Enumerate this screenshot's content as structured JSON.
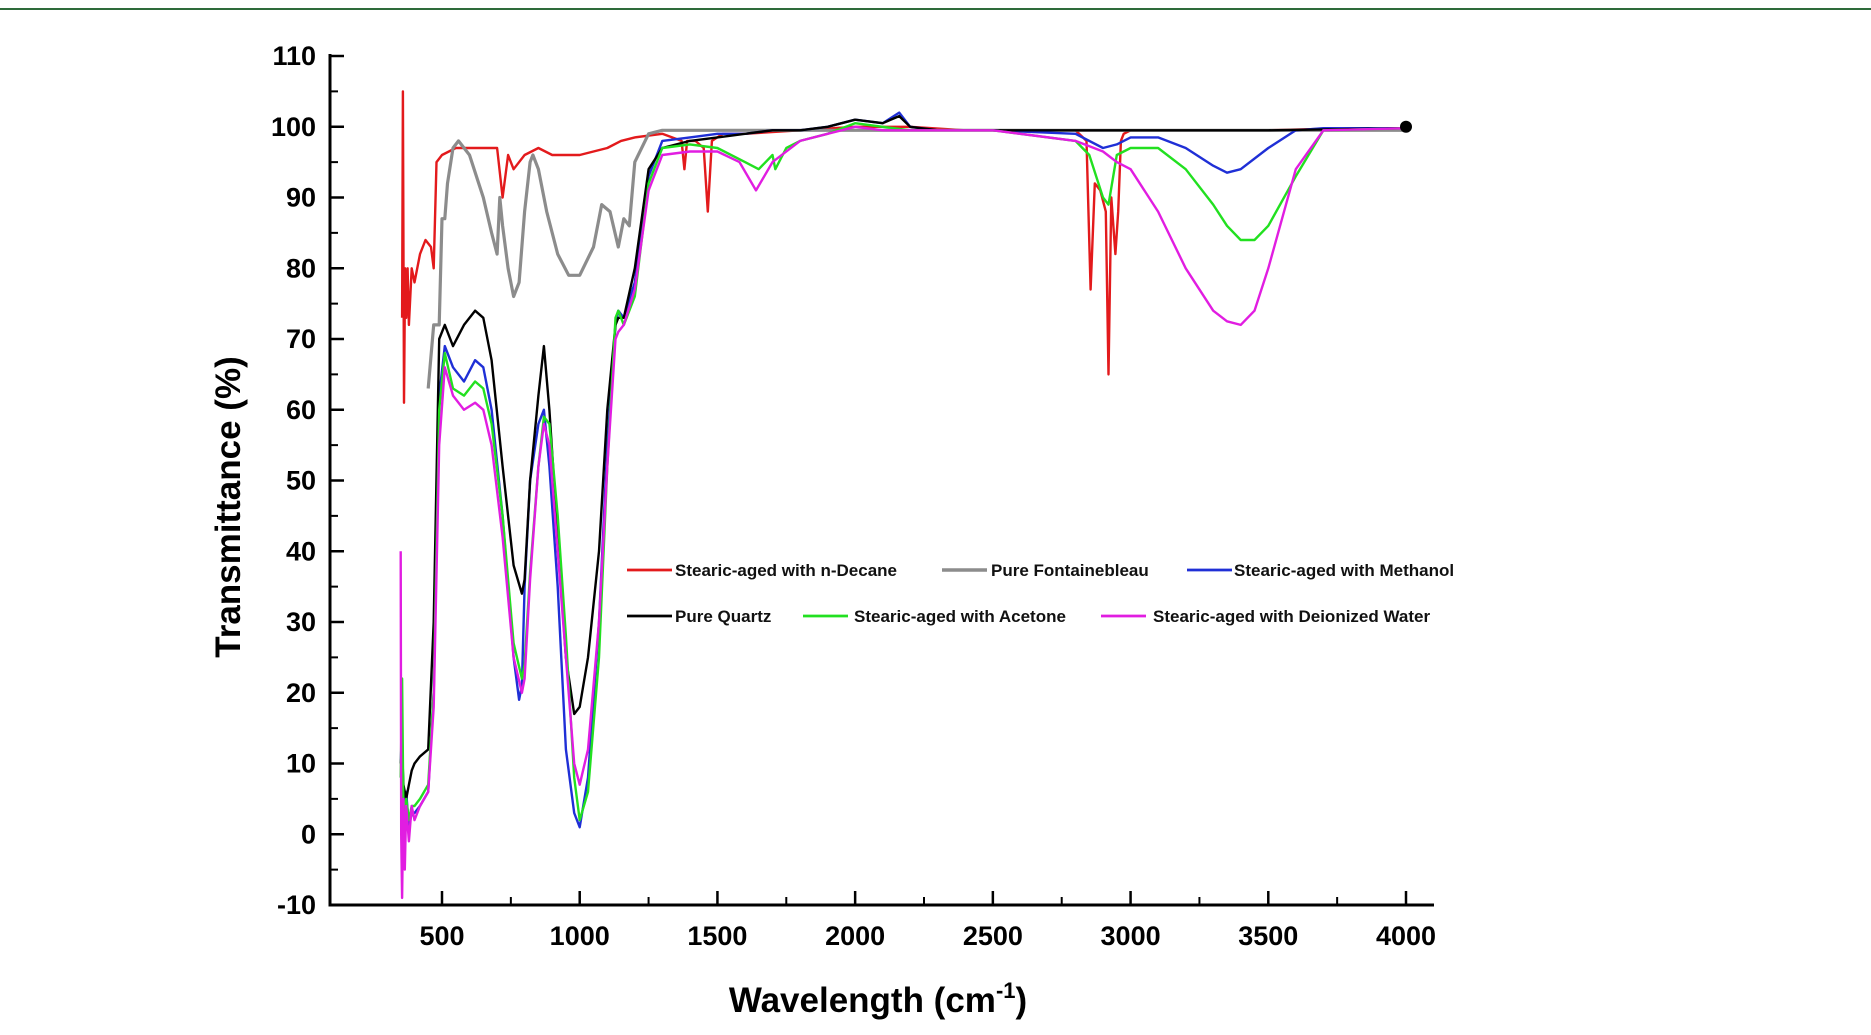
{
  "chart_data": {
    "type": "line",
    "title": "",
    "xlabel": "Wavelength (cm",
    "xlabel_sup": "-1",
    "xlabel_close": ")",
    "ylabel": "Transmittance (%)",
    "xlim": [
      300,
      4050
    ],
    "ylim": [
      -10,
      110
    ],
    "xticks": [
      500,
      1000,
      1500,
      2000,
      2500,
      3000,
      3500,
      4000
    ],
    "yticks": [
      -10,
      0,
      10,
      20,
      30,
      40,
      50,
      60,
      70,
      80,
      90,
      100,
      110
    ],
    "grid": false,
    "legend_position": "center-right",
    "series": [
      {
        "name": "Stearic-aged with n-Decane",
        "color": "#e31a1c",
        "x": [
          355,
          358,
          362,
          366,
          370,
          375,
          380,
          390,
          400,
          420,
          440,
          460,
          470,
          480,
          500,
          550,
          600,
          650,
          700,
          720,
          740,
          760,
          800,
          850,
          900,
          1000,
          1100,
          1150,
          1200,
          1300,
          1370,
          1380,
          1390,
          1420,
          1450,
          1465,
          1480,
          1520,
          1600,
          1800,
          2000,
          2200,
          2400,
          2600,
          2800,
          2840,
          2855,
          2870,
          2890,
          2910,
          2920,
          2930,
          2945,
          2955,
          2965,
          2975,
          3000,
          3200,
          3500,
          3800,
          4000
        ],
        "y": [
          73,
          105,
          61,
          80,
          73,
          80,
          72,
          80,
          78,
          82,
          84,
          83,
          80,
          95,
          96,
          97,
          97,
          97,
          97,
          90,
          96,
          94,
          96,
          97,
          96,
          96,
          97,
          98,
          98.5,
          99,
          98,
          94,
          98,
          98,
          97,
          88,
          98,
          99,
          99,
          99.5,
          100,
          100,
          99.5,
          99.5,
          99.5,
          98,
          77,
          92,
          91,
          88,
          65,
          90,
          82,
          88,
          98,
          99,
          99.5,
          99.5,
          99.5,
          99.8,
          99.8
        ]
      },
      {
        "name": "Pure Fontainebleau",
        "color": "#8c8c8c",
        "x": [
          450,
          470,
          490,
          500,
          510,
          520,
          540,
          560,
          600,
          650,
          680,
          700,
          710,
          720,
          740,
          760,
          780,
          800,
          820,
          830,
          850,
          880,
          920,
          960,
          1000,
          1050,
          1080,
          1110,
          1140,
          1160,
          1180,
          1200,
          1250,
          1300,
          1400,
          2000,
          2500,
          3000,
          3500,
          4000
        ],
        "y": [
          63,
          72,
          72,
          87,
          87,
          92,
          97,
          98,
          96,
          90,
          85,
          82,
          90,
          86,
          80,
          76,
          78,
          88,
          95,
          96,
          94,
          88,
          82,
          79,
          79,
          83,
          89,
          88,
          83,
          87,
          86,
          95,
          99,
          99.5,
          99.5,
          99.5,
          99.5,
          99.5,
          99.5,
          99.5
        ]
      },
      {
        "name": "Stearic-aged with Methanol",
        "color": "#1f2fd6",
        "x": [
          350,
          355,
          360,
          370,
          380,
          390,
          400,
          420,
          450,
          470,
          490,
          510,
          540,
          580,
          620,
          650,
          680,
          720,
          760,
          780,
          790,
          800,
          820,
          850,
          870,
          890,
          920,
          950,
          980,
          1000,
          1030,
          1070,
          1100,
          1130,
          1140,
          1160,
          1200,
          1250,
          1300,
          1400,
          1500,
          1600,
          1700,
          1800,
          1900,
          2000,
          2100,
          2160,
          2200,
          2300,
          2500,
          2800,
          2900,
          2950,
          3000,
          3100,
          3200,
          3300,
          3350,
          3400,
          3500,
          3600,
          3700,
          4000
        ],
        "y": [
          10,
          15,
          4,
          6,
          1,
          3,
          3,
          4,
          6,
          20,
          62,
          69,
          66,
          64,
          67,
          66,
          60,
          45,
          25,
          19,
          21,
          35,
          50,
          58,
          60,
          52,
          35,
          12,
          3,
          1,
          8,
          30,
          55,
          72,
          74,
          73,
          78,
          93,
          98,
          98.5,
          99,
          99,
          99.5,
          99.5,
          100,
          101,
          100.5,
          102,
          100,
          99.5,
          99.5,
          99,
          97,
          97.5,
          98.5,
          98.5,
          97,
          94.5,
          93.5,
          94,
          97,
          99.5,
          99.8,
          99.8
        ]
      },
      {
        "name": "Pure Quartz",
        "color": "#000000",
        "x": [
          350,
          355,
          360,
          370,
          380,
          390,
          400,
          420,
          450,
          470,
          490,
          510,
          540,
          580,
          620,
          650,
          680,
          720,
          760,
          790,
          800,
          820,
          850,
          870,
          890,
          920,
          950,
          980,
          1000,
          1030,
          1070,
          1100,
          1130,
          1140,
          1160,
          1200,
          1250,
          1300,
          1400,
          1500,
          1600,
          1700,
          1800,
          1900,
          2000,
          2100,
          2160,
          2200,
          2300,
          2500,
          2800,
          2900,
          3000,
          3500,
          4000
        ],
        "y": [
          10,
          12,
          7,
          5,
          7,
          9,
          10,
          11,
          12,
          30,
          70,
          72,
          69,
          72,
          74,
          73,
          67,
          52,
          38,
          34,
          36,
          50,
          62,
          69,
          60,
          42,
          25,
          17,
          18,
          25,
          40,
          60,
          72,
          73,
          73,
          80,
          94,
          97,
          98,
          98.5,
          99,
          99.5,
          99.5,
          100,
          101,
          100.5,
          101.5,
          100,
          99.5,
          99.5,
          99.5,
          99.5,
          99.5,
          99.5,
          99.8
        ]
      },
      {
        "name": "Stearic-aged with Acetone",
        "color": "#22e020",
        "x": [
          350,
          355,
          360,
          370,
          380,
          390,
          400,
          420,
          450,
          470,
          490,
          510,
          540,
          580,
          620,
          650,
          680,
          720,
          760,
          790,
          800,
          820,
          850,
          870,
          890,
          920,
          950,
          980,
          1000,
          1030,
          1070,
          1100,
          1130,
          1140,
          1160,
          1200,
          1250,
          1300,
          1400,
          1500,
          1600,
          1650,
          1700,
          1710,
          1750,
          1800,
          1900,
          2000,
          2100,
          2200,
          2300,
          2500,
          2800,
          2850,
          2900,
          2920,
          2950,
          3000,
          3100,
          3200,
          3300,
          3350,
          3400,
          3450,
          3500,
          3600,
          3700,
          4000
        ],
        "y": [
          8,
          22,
          3,
          5,
          2,
          4,
          4,
          5,
          7,
          20,
          60,
          68,
          63,
          62,
          64,
          63,
          58,
          45,
          27,
          22,
          24,
          37,
          52,
          59,
          58,
          45,
          28,
          8,
          2,
          6,
          25,
          52,
          73,
          74,
          72,
          76,
          92,
          97,
          97.5,
          97,
          95,
          94,
          96,
          94,
          97,
          98,
          99,
          100.5,
          100,
          99.5,
          99.5,
          99.5,
          98,
          96,
          90,
          89,
          96,
          97,
          97,
          94,
          89,
          86,
          84,
          84,
          86,
          93,
          99.5,
          99.8
        ]
      },
      {
        "name": "Stearic-aged with Deionized Water",
        "color": "#e11de1",
        "x": [
          350,
          352,
          355,
          360,
          365,
          370,
          380,
          390,
          400,
          420,
          450,
          470,
          490,
          510,
          540,
          580,
          620,
          650,
          680,
          720,
          760,
          790,
          800,
          820,
          850,
          870,
          890,
          920,
          950,
          980,
          1000,
          1030,
          1070,
          1100,
          1130,
          1140,
          1160,
          1200,
          1250,
          1300,
          1400,
          1500,
          1580,
          1640,
          1700,
          1800,
          1900,
          2000,
          2100,
          2200,
          2300,
          2500,
          2800,
          2900,
          2950,
          3000,
          3100,
          3200,
          3300,
          3350,
          3400,
          3450,
          3500,
          3600,
          3700,
          4000
        ],
        "y": [
          40,
          0,
          -9,
          5,
          -5,
          4,
          -1,
          4,
          2,
          4,
          6,
          18,
          55,
          66,
          62,
          60,
          61,
          60,
          55,
          42,
          25,
          20,
          22,
          36,
          52,
          58,
          55,
          40,
          25,
          10,
          7,
          12,
          30,
          52,
          70,
          71,
          72,
          77,
          91,
          96,
          96.5,
          96.5,
          95,
          91,
          95,
          98,
          99,
          100,
          99.5,
          99.5,
          99.5,
          99.5,
          98,
          96.5,
          95,
          94,
          88,
          80,
          74,
          72.5,
          72,
          74,
          80,
          94,
          99.5,
          99.8
        ]
      }
    ],
    "end_marker": {
      "x": 4000,
      "y": 100
    }
  }
}
